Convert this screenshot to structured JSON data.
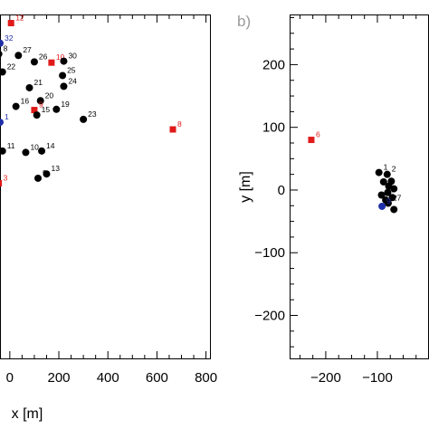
{
  "colors": {
    "black_marker": "#000000",
    "red_marker": "#e01a1a",
    "blue_marker": "#1f2fa8",
    "frame": "#000000",
    "panel_letter": "#9a9a9a"
  },
  "chart_data": [
    {
      "type": "scatter",
      "panel": "",
      "xlabel": "x [m]",
      "ylabel": "",
      "xlim": [
        -40,
        820
      ],
      "ylim": [
        -150,
        330
      ],
      "xticks": [
        0,
        200,
        400,
        600,
        800
      ],
      "xtick_labels": [
        "0",
        "200",
        "400",
        "600",
        "800"
      ],
      "yticks": [],
      "ytick_labels": [],
      "grid": false,
      "legend": "none",
      "points": [
        {
          "label": "12",
          "x": 5,
          "y": 318,
          "group": "red"
        },
        {
          "label": "32",
          "x": -40,
          "y": 290,
          "group": "blue"
        },
        {
          "label": "8",
          "x": -45,
          "y": 275,
          "group": "black"
        },
        {
          "label": "27",
          "x": 35,
          "y": 273,
          "group": "black"
        },
        {
          "label": "26",
          "x": 100,
          "y": 264,
          "group": "black"
        },
        {
          "label": "10",
          "x": 170,
          "y": 263,
          "group": "red"
        },
        {
          "label": "30",
          "x": 220,
          "y": 265,
          "group": "black"
        },
        {
          "label": "22",
          "x": -30,
          "y": 250,
          "group": "black"
        },
        {
          "label": "25",
          "x": 215,
          "y": 245,
          "group": "black"
        },
        {
          "label": "24",
          "x": 220,
          "y": 230,
          "group": "black"
        },
        {
          "label": "21",
          "x": 80,
          "y": 228,
          "group": "black"
        },
        {
          "label": "20",
          "x": 125,
          "y": 210,
          "group": "black"
        },
        {
          "label": "19",
          "x": 190,
          "y": 198,
          "group": "black"
        },
        {
          "label": "16",
          "x": 25,
          "y": 202,
          "group": "black"
        },
        {
          "label": "9",
          "x": 100,
          "y": 197,
          "group": "red"
        },
        {
          "label": "15",
          "x": 110,
          "y": 190,
          "group": "black"
        },
        {
          "label": "23",
          "x": 300,
          "y": 184,
          "group": "black"
        },
        {
          "label": "1",
          "x": -40,
          "y": 180,
          "group": "blue"
        },
        {
          "label": "8",
          "x": 665,
          "y": 170,
          "group": "red"
        },
        {
          "label": "11",
          "x": -30,
          "y": 140,
          "group": "black"
        },
        {
          "label": "10",
          "x": 65,
          "y": 138,
          "group": "black"
        },
        {
          "label": "14",
          "x": 130,
          "y": 140,
          "group": "black"
        },
        {
          "label": "13",
          "x": 150,
          "y": 108,
          "group": "black"
        },
        {
          "label": "9",
          "x": 115,
          "y": 102,
          "group": "black"
        },
        {
          "label": "3",
          "x": -45,
          "y": 95,
          "group": "red"
        }
      ]
    },
    {
      "type": "scatter",
      "panel": "b)",
      "xlabel": "",
      "ylabel": "y [m]",
      "xlim": [
        -270,
        0
      ],
      "ylim": [
        -270,
        280
      ],
      "xticks": [
        -200,
        -100
      ],
      "xtick_labels": [
        "−200",
        "−100"
      ],
      "yticks": [
        200,
        100,
        0,
        -100,
        -200
      ],
      "ytick_labels": [
        "200",
        "100",
        "0",
        "−100",
        "−200"
      ],
      "grid": false,
      "legend": "none",
      "points": [
        {
          "label": "6",
          "x": -228,
          "y": 80,
          "group": "red"
        },
        {
          "label": "1",
          "x": -97,
          "y": 28,
          "group": "black"
        },
        {
          "label": "2",
          "x": -81,
          "y": 25,
          "group": "black"
        },
        {
          "label": "",
          "x": -73,
          "y": 14,
          "group": "black"
        },
        {
          "label": "",
          "x": -88,
          "y": 13,
          "group": "black"
        },
        {
          "label": "",
          "x": -78,
          "y": 6,
          "group": "black"
        },
        {
          "label": "",
          "x": -68,
          "y": 2,
          "group": "black"
        },
        {
          "label": "",
          "x": -80,
          "y": -4,
          "group": "black"
        },
        {
          "label": "17",
          "x": -92,
          "y": -8,
          "group": "black"
        },
        {
          "label": "",
          "x": -71,
          "y": -12,
          "group": "black"
        },
        {
          "label": "",
          "x": -84,
          "y": -16,
          "group": "black"
        },
        {
          "label": "27",
          "x": -79,
          "y": -21,
          "group": "black"
        },
        {
          "label": "9",
          "x": -91,
          "y": -26,
          "group": "blue"
        },
        {
          "label": "",
          "x": -68,
          "y": -31,
          "group": "black"
        }
      ]
    }
  ]
}
